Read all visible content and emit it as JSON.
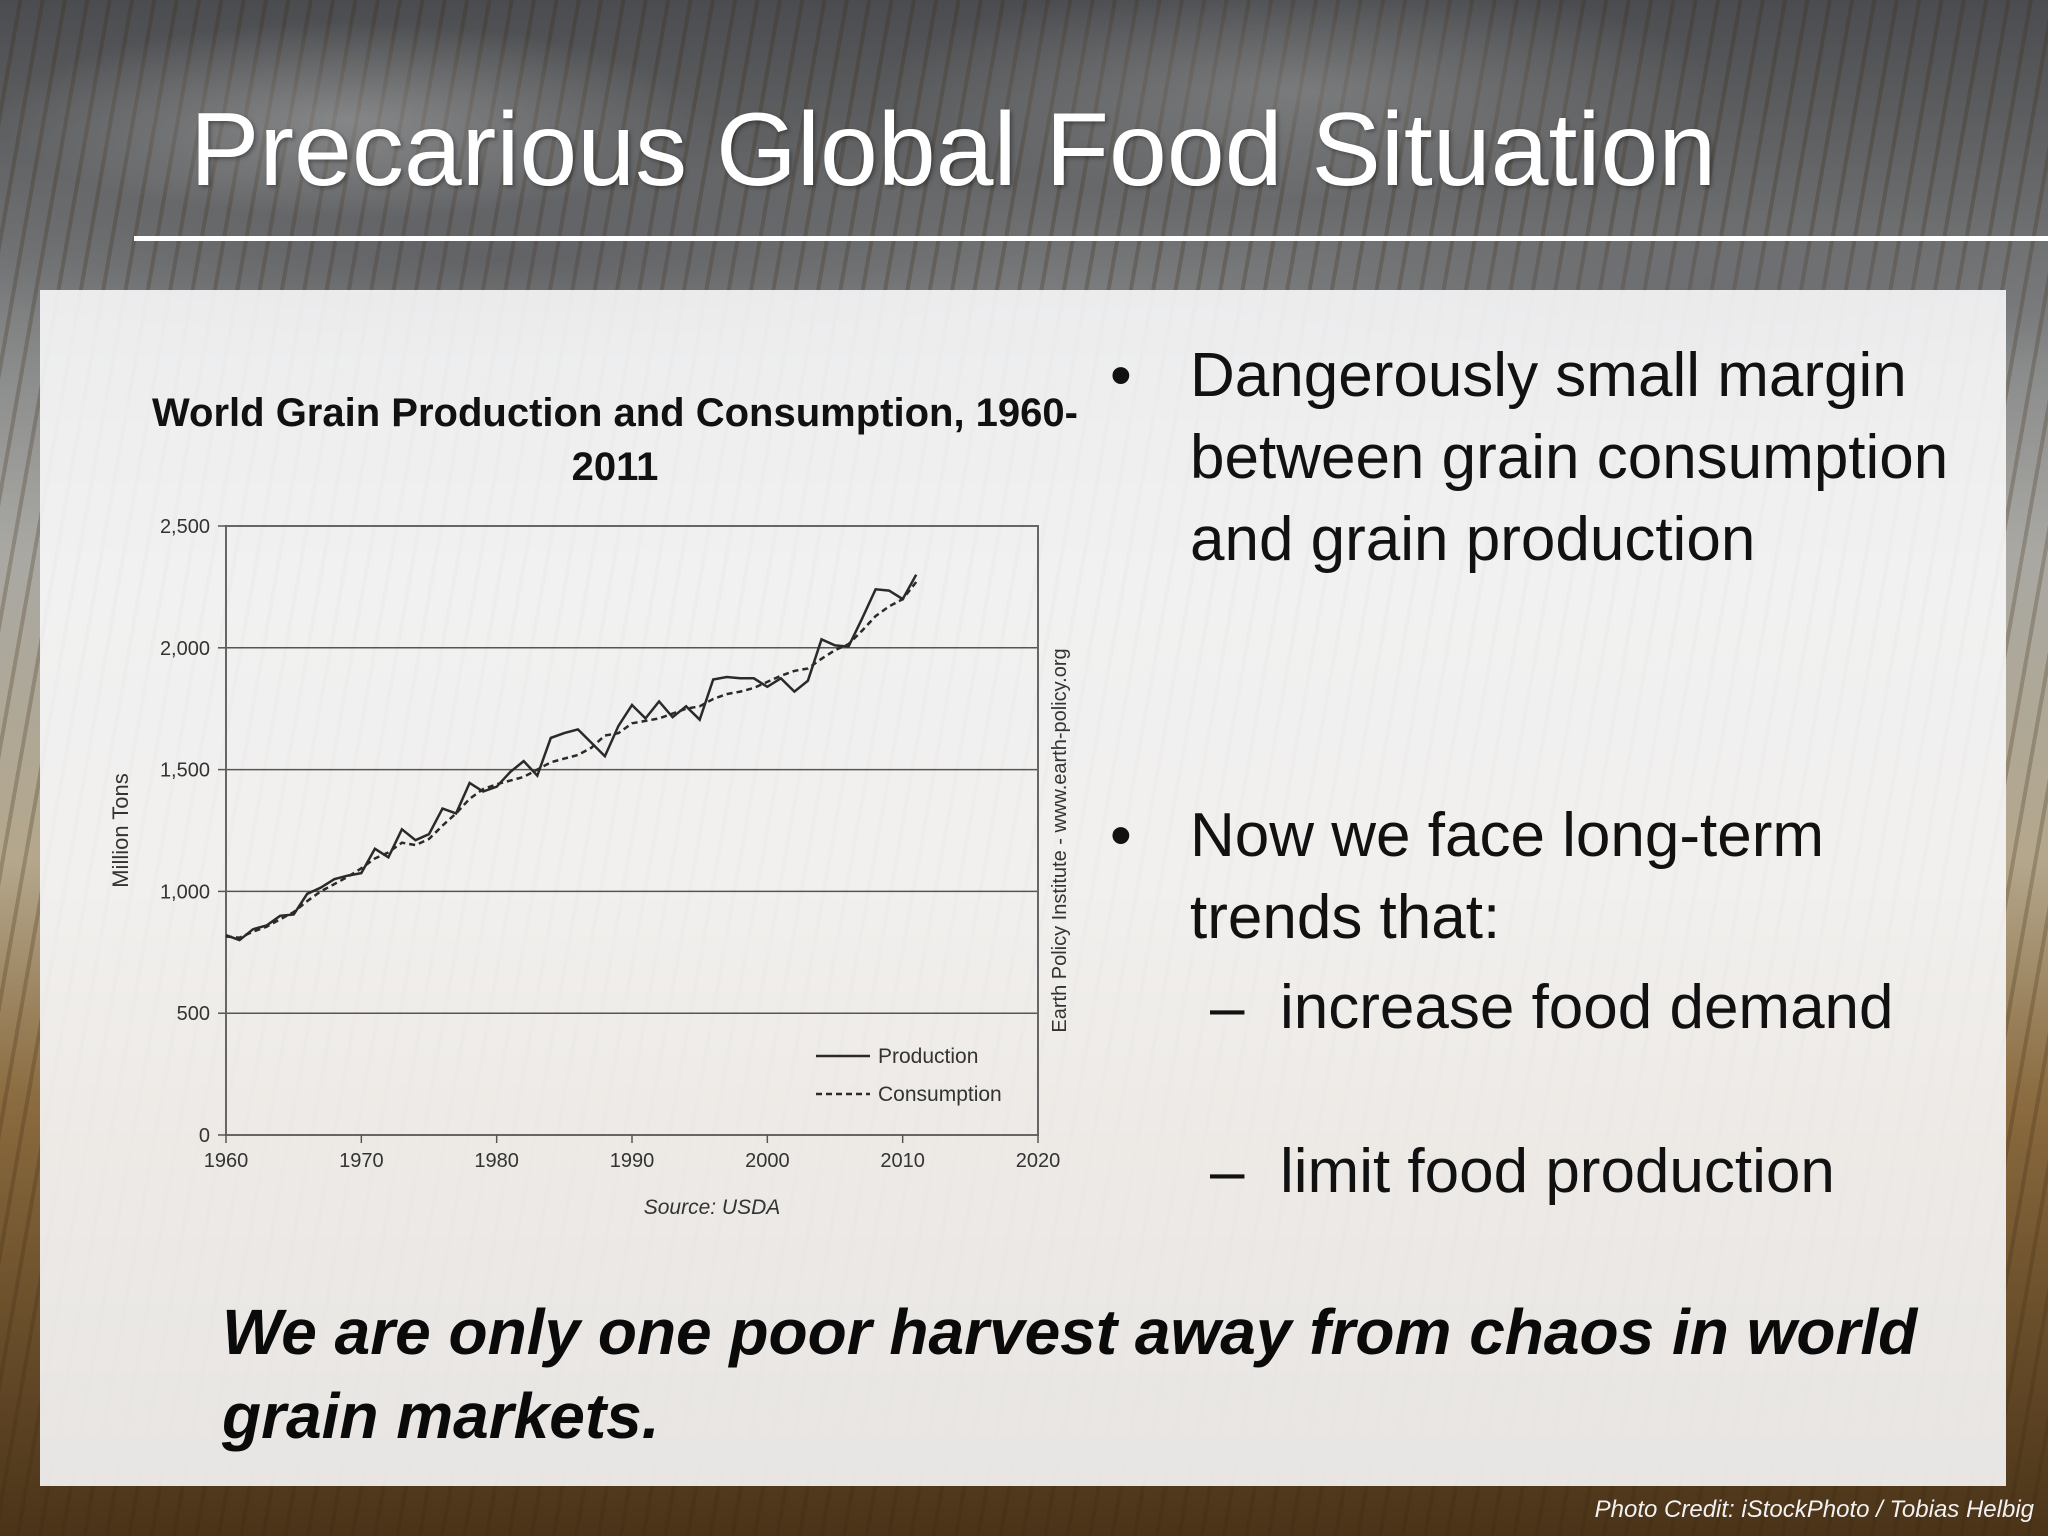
{
  "slide": {
    "title": "Precarious Global Food Situation",
    "bullets": [
      {
        "text": "Dangerously small margin between grain consumption and grain production"
      },
      {
        "text": "Now we face long-term trends that:",
        "subitems": [
          "increase food demand",
          "limit food production"
        ]
      }
    ],
    "bullet_symbol": "•",
    "dash_symbol": "–",
    "quote": "We are only one poor harvest away from chaos in world grain markets.",
    "photo_credit": "Photo Credit: iStockPhoto / Tobias Helbig"
  },
  "chart_data": {
    "type": "line",
    "title": "World Grain Production and Consumption, 1960-2011",
    "xlabel": "",
    "ylabel": "Million Tons",
    "xlim": [
      1960,
      2020
    ],
    "ylim": [
      0,
      2500
    ],
    "xticks": [
      1960,
      1970,
      1980,
      1990,
      2000,
      2010,
      2020
    ],
    "yticks": [
      0,
      500,
      1000,
      1500,
      2000,
      2500
    ],
    "ytick_labels": [
      "0",
      "500",
      "1,000",
      "1,500",
      "2,000",
      "2,500"
    ],
    "grid": "horizontal",
    "legend": "bottom-right",
    "source": "Source: USDA",
    "credit": "Earth Policy Institute - www.earth-policy.org",
    "x": [
      1960,
      1961,
      1962,
      1963,
      1964,
      1965,
      1966,
      1967,
      1968,
      1969,
      1970,
      1971,
      1972,
      1973,
      1974,
      1975,
      1976,
      1977,
      1978,
      1979,
      1980,
      1981,
      1982,
      1983,
      1984,
      1985,
      1986,
      1987,
      1988,
      1989,
      1990,
      1991,
      1992,
      1993,
      1994,
      1995,
      1996,
      1997,
      1998,
      1999,
      2000,
      2001,
      2002,
      2003,
      2004,
      2005,
      2006,
      2007,
      2008,
      2009,
      2010,
      2011
    ],
    "series": [
      {
        "name": "Production",
        "style": "solid",
        "values": [
          820,
          800,
          845,
          860,
          900,
          905,
          990,
          1015,
          1050,
          1065,
          1075,
          1175,
          1140,
          1255,
          1210,
          1235,
          1340,
          1320,
          1445,
          1410,
          1430,
          1490,
          1535,
          1475,
          1630,
          1650,
          1665,
          1610,
          1555,
          1680,
          1765,
          1710,
          1780,
          1715,
          1760,
          1705,
          1870,
          1880,
          1875,
          1875,
          1840,
          1875,
          1820,
          1865,
          2035,
          2010,
          2005,
          2120,
          2240,
          2235,
          2200,
          2300
        ]
      },
      {
        "name": "Consumption",
        "style": "dashed",
        "values": [
          815,
          810,
          835,
          855,
          885,
          915,
          960,
          1000,
          1030,
          1060,
          1095,
          1135,
          1160,
          1200,
          1190,
          1215,
          1270,
          1320,
          1380,
          1420,
          1440,
          1455,
          1470,
          1500,
          1530,
          1545,
          1560,
          1590,
          1640,
          1650,
          1690,
          1700,
          1710,
          1730,
          1750,
          1760,
          1790,
          1810,
          1820,
          1835,
          1860,
          1885,
          1905,
          1915,
          1955,
          1990,
          2015,
          2070,
          2130,
          2170,
          2200,
          2270
        ]
      }
    ]
  }
}
